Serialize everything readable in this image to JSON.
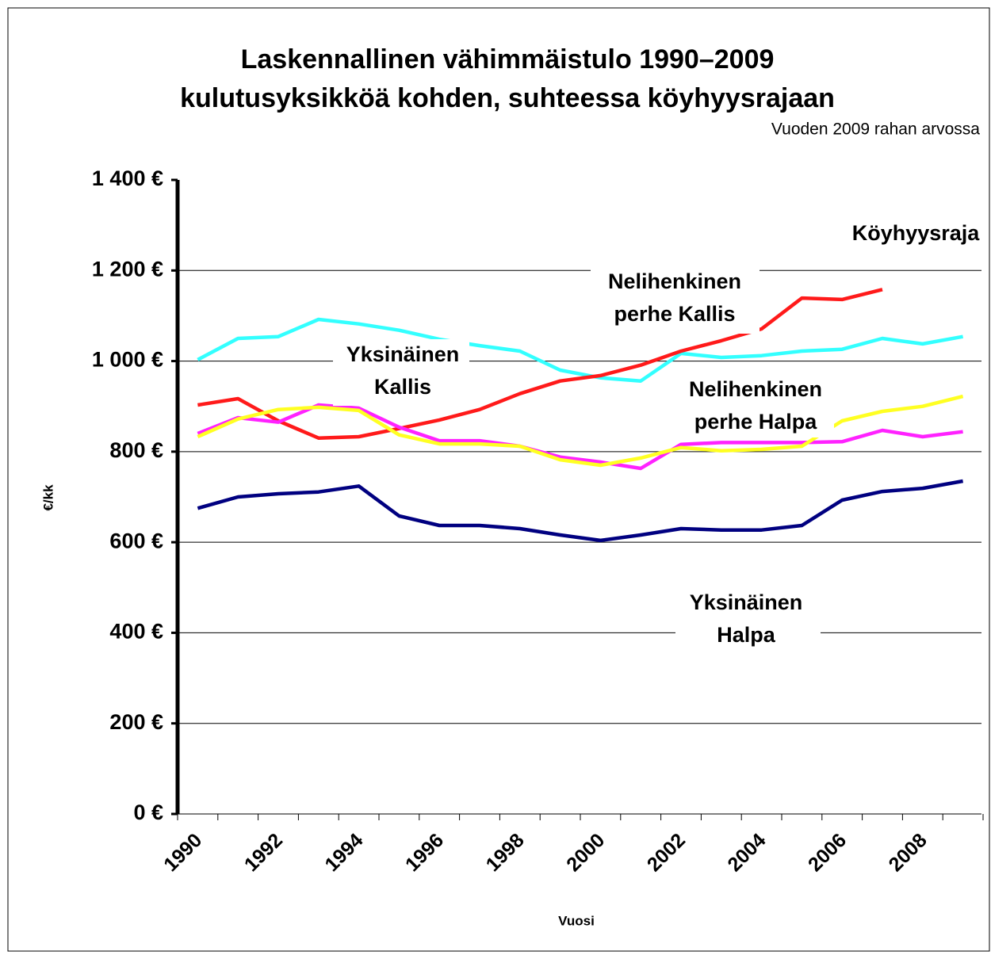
{
  "chart_data": {
    "type": "line",
    "title": [
      "Laskennallinen vähimmäistulo 1990–2009",
      "kulutusyksikköä kohden, suhteessa köyhyysrajaan"
    ],
    "subtitle": "Vuoden 2009 rahan arvossa",
    "x_label": "Vuosi",
    "y_label": "€/kk",
    "categories": [
      "1990",
      null,
      "1992",
      null,
      "1994",
      null,
      "1996",
      null,
      "1998",
      null,
      "2000",
      null,
      "2002",
      null,
      "2004",
      null,
      "2006",
      null,
      "2008",
      null
    ],
    "series": [
      {
        "name": "Yksinäinen Kallis",
        "color": "#33ffff",
        "values": [
          1003,
          1050,
          1054,
          1092,
          1082,
          1068,
          1048,
          1034,
          1022,
          980,
          963,
          956,
          1017,
          1008,
          1012,
          1022,
          1026,
          1050,
          1038,
          1054
        ]
      },
      {
        "name": "Nelihenkinen perhe Kallis",
        "color": "#ff1a1a",
        "values": [
          903,
          917,
          868,
          830,
          833,
          851,
          870,
          893,
          928,
          956,
          968,
          991,
          1022,
          1045,
          1071,
          1139,
          1136,
          1158,
          null,
          null
        ]
      },
      {
        "color": "#ff22ff",
        "values": [
          840,
          875,
          865,
          903,
          896,
          854,
          824,
          824,
          812,
          788,
          777,
          763,
          816,
          820,
          820,
          820,
          822,
          847,
          833,
          844
        ]
      },
      {
        "name": "Nelihenkinen perhe Halpa",
        "color": "#ffff22",
        "values": [
          833,
          872,
          893,
          898,
          891,
          837,
          817,
          817,
          812,
          782,
          770,
          786,
          809,
          802,
          805,
          812,
          868,
          889,
          900,
          922
        ]
      },
      {
        "name": "Yksinäinen Halpa",
        "color": "#000080",
        "values": [
          675,
          700,
          707,
          711,
          724,
          658,
          637,
          637,
          630,
          616,
          604,
          616,
          630,
          627,
          627,
          637,
          693,
          712,
          719,
          735
        ]
      }
    ],
    "annotations": [
      [
        "Köyhyysraja"
      ],
      [
        "Nelihenkinen",
        "perhe Kallis"
      ],
      [
        "Yksinäinen",
        "Kallis"
      ],
      [
        "Nelihenkinen",
        "perhe Halpa"
      ],
      [
        "Yksinäinen",
        "Halpa"
      ]
    ],
    "ylim": [
      0,
      1400
    ],
    "yticks": [
      {
        "value": 0,
        "label": "0 €"
      },
      {
        "value": 200,
        "label": "200 €"
      },
      {
        "value": 400,
        "label": "400 €"
      },
      {
        "value": 600,
        "label": "600 €"
      },
      {
        "value": 800,
        "label": "800 €"
      },
      {
        "value": 1000,
        "label": "1 000 €"
      },
      {
        "value": 1200,
        "label": "1 200 €"
      },
      {
        "value": 1400,
        "label": "1 400 €"
      }
    ],
    "grid": true
  }
}
